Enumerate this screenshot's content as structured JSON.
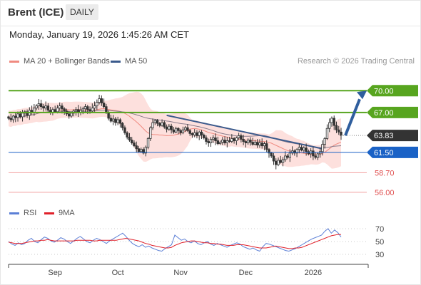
{
  "header": {
    "title": "Brent (ICE)",
    "timeframe": "DAILY",
    "timestamp": "Monday, January 19, 2026 1:45:26 AM CET",
    "credit": "Research © 2026 Trading Central"
  },
  "legend": [
    {
      "label": "MA 20 + Bollinger Bands",
      "color": "#f08a80"
    },
    {
      "label": "MA 50",
      "color": "#3a5a8c"
    }
  ],
  "rsi_legend": [
    {
      "label": "RSI",
      "color": "#5b7fd6"
    },
    {
      "label": "9MA",
      "color": "#e0202a"
    }
  ],
  "chart_data": [
    {
      "type": "candlestick",
      "ylim": [
        55.0,
        71.5
      ],
      "x_ticks": [
        "Sep",
        "Oct",
        "Nov",
        "Dec",
        "2026"
      ],
      "current_price": 63.83,
      "levels": [
        {
          "value": 70.0,
          "label": "70.00",
          "style": "resistance",
          "color": "#57a51f"
        },
        {
          "value": 67.0,
          "label": "67.00",
          "style": "resistance",
          "color": "#57a51f"
        },
        {
          "value": 63.83,
          "label": "63.83",
          "style": "last",
          "color": "#333333"
        },
        {
          "value": 61.5,
          "label": "61.50",
          "style": "pivot",
          "color": "#1a62c6"
        },
        {
          "value": 58.7,
          "label": "58.70",
          "style": "support",
          "color": "#e05050"
        },
        {
          "value": 56.0,
          "label": "56.00",
          "style": "support",
          "color": "#e05050"
        }
      ],
      "closes": [
        66.2,
        66.0,
        66.5,
        66.3,
        66.8,
        66.4,
        66.9,
        67.1,
        66.6,
        67.3,
        67.0,
        67.6,
        67.9,
        68.2,
        67.8,
        67.6,
        67.9,
        67.3,
        67.0,
        67.4,
        67.1,
        67.6,
        67.9,
        67.5,
        67.2,
        66.8,
        66.5,
        66.9,
        67.2,
        67.4,
        67.0,
        67.3,
        67.5,
        67.8,
        67.4,
        67.2,
        67.6,
        67.9,
        68.4,
        68.9,
        68.3,
        67.8,
        67.0,
        66.2,
        65.8,
        66.1,
        65.6,
        66.0,
        65.5,
        64.9,
        64.2,
        63.6,
        63.2,
        62.8,
        62.4,
        62.0,
        61.6,
        61.9,
        61.4,
        62.2,
        63.4,
        64.9,
        65.6,
        65.9,
        65.5,
        65.2,
        65.6,
        65.0,
        64.7,
        65.1,
        64.6,
        64.3,
        64.8,
        64.5,
        64.2,
        64.6,
        64.9,
        64.5,
        64.1,
        63.9,
        64.2,
        63.8,
        64.3,
        63.9,
        63.5,
        63.0,
        62.8,
        63.3,
        63.5,
        63.1,
        62.7,
        62.9,
        63.2,
        62.8,
        63.1,
        63.0,
        63.4,
        63.1,
        63.5,
        63.8,
        63.3,
        63.0,
        62.8,
        63.2,
        62.9,
        62.6,
        62.9,
        62.5,
        62.8,
        62.4,
        62.7,
        61.9,
        61.4,
        61.0,
        60.3,
        59.8,
        60.4,
        60.1,
        60.5,
        61.0,
        60.8,
        61.4,
        61.7,
        61.4,
        61.9,
        62.2,
        61.8,
        62.1,
        61.6,
        61.3,
        61.7,
        61.0,
        60.8,
        61.3,
        61.6,
        62.6,
        63.4,
        64.8,
        65.6,
        66.2,
        65.2,
        64.6,
        64.3,
        63.83
      ],
      "rsi": {
        "ylim": [
          20,
          80
        ],
        "ticks": [
          70,
          50,
          30
        ],
        "rsi_values": [
          50,
          46,
          44,
          48,
          45,
          47,
          52,
          55,
          50,
          48,
          53,
          57,
          55,
          51,
          49,
          52,
          56,
          54,
          50,
          47,
          51,
          55,
          58,
          54,
          50,
          48,
          52,
          55,
          53,
          50,
          47,
          51,
          54,
          57,
          60,
          63,
          58,
          52,
          47,
          44,
          42,
          45,
          41,
          43,
          40,
          38,
          36,
          35,
          39,
          42,
          45,
          60,
          56,
          52,
          54,
          50,
          48,
          51,
          47,
          45,
          48,
          50,
          46,
          44,
          47,
          45,
          43,
          41,
          44,
          46,
          48,
          46,
          42,
          40,
          38,
          40,
          37,
          35,
          42,
          47,
          46,
          44,
          42,
          40,
          38,
          36,
          35,
          37,
          39,
          42,
          45,
          48,
          51,
          54,
          56,
          58,
          60,
          66,
          70,
          63,
          68,
          64,
          57
        ],
        "ma9_values": [
          49,
          48,
          47,
          47,
          47,
          48,
          49,
          50,
          51,
          51,
          52,
          52,
          53,
          52,
          51,
          51,
          51,
          51,
          51,
          51,
          51,
          52,
          52,
          52,
          52,
          52,
          51,
          51,
          52,
          52,
          52,
          52,
          52,
          52,
          53,
          54,
          55,
          54,
          53,
          52,
          51,
          49,
          47,
          46,
          44,
          43,
          42,
          41,
          40,
          40,
          41,
          44,
          46,
          48,
          49,
          50,
          51,
          51,
          50,
          49,
          48,
          48,
          47,
          47,
          46,
          46,
          45,
          44,
          44,
          44,
          45,
          45,
          45,
          44,
          43,
          42,
          41,
          40,
          40,
          40,
          41,
          42,
          43,
          42,
          41,
          40,
          39,
          39,
          40,
          40,
          41,
          43,
          45,
          47,
          49,
          51,
          53,
          55,
          57,
          59,
          60,
          61,
          61
        ]
      }
    }
  ]
}
